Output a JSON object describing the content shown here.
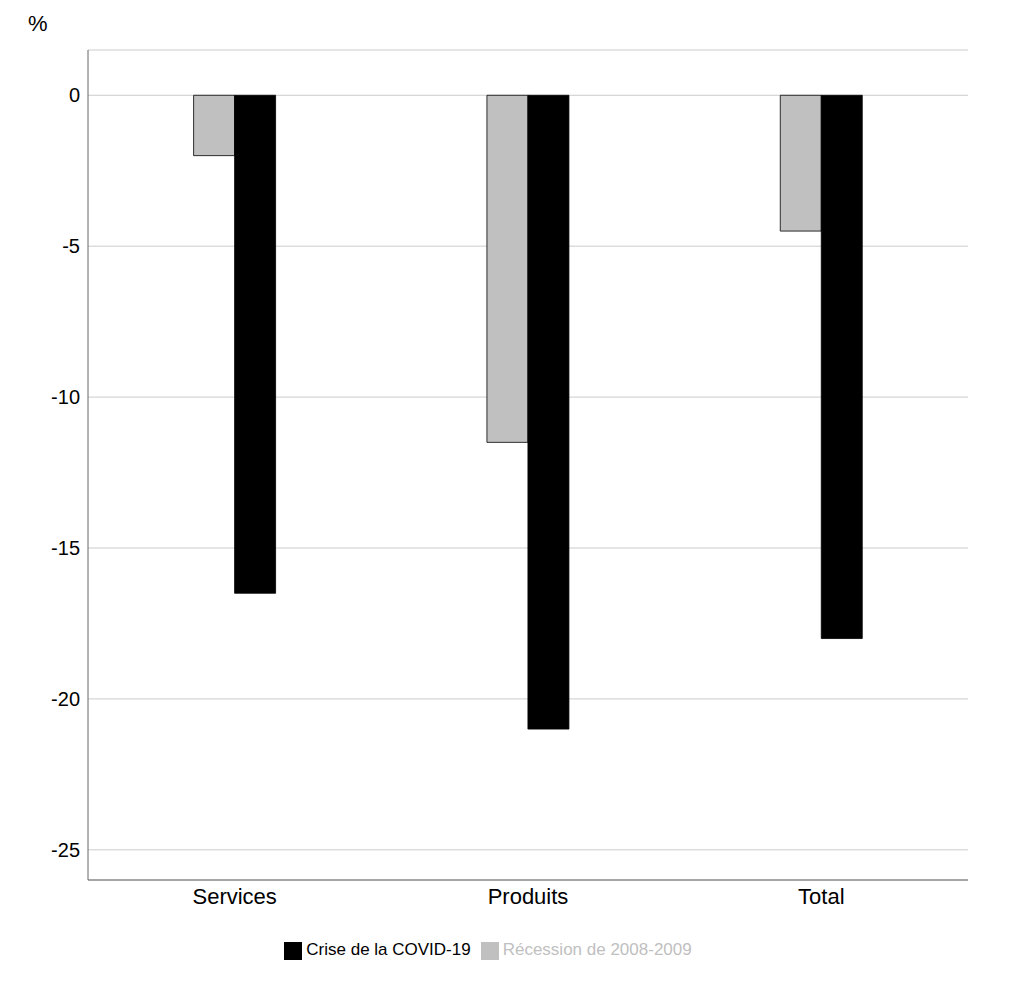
{
  "chart_data": {
    "type": "bar",
    "ylabel": "%",
    "categories": [
      "Services",
      "Produits",
      "Total"
    ],
    "series": [
      {
        "name": "Récession de 2008-2009",
        "color": "#c0c0c0",
        "values": [
          -2.0,
          -11.5,
          -4.5
        ]
      },
      {
        "name": "Crise de la COVID-19",
        "color": "#000000",
        "values": [
          -16.5,
          -21.0,
          -18.0
        ]
      }
    ],
    "ylim": [
      -26,
      1.5
    ],
    "yticks": [
      0,
      -5,
      -10,
      -15,
      -20,
      -25
    ],
    "grid": true,
    "legend": "bottom"
  }
}
